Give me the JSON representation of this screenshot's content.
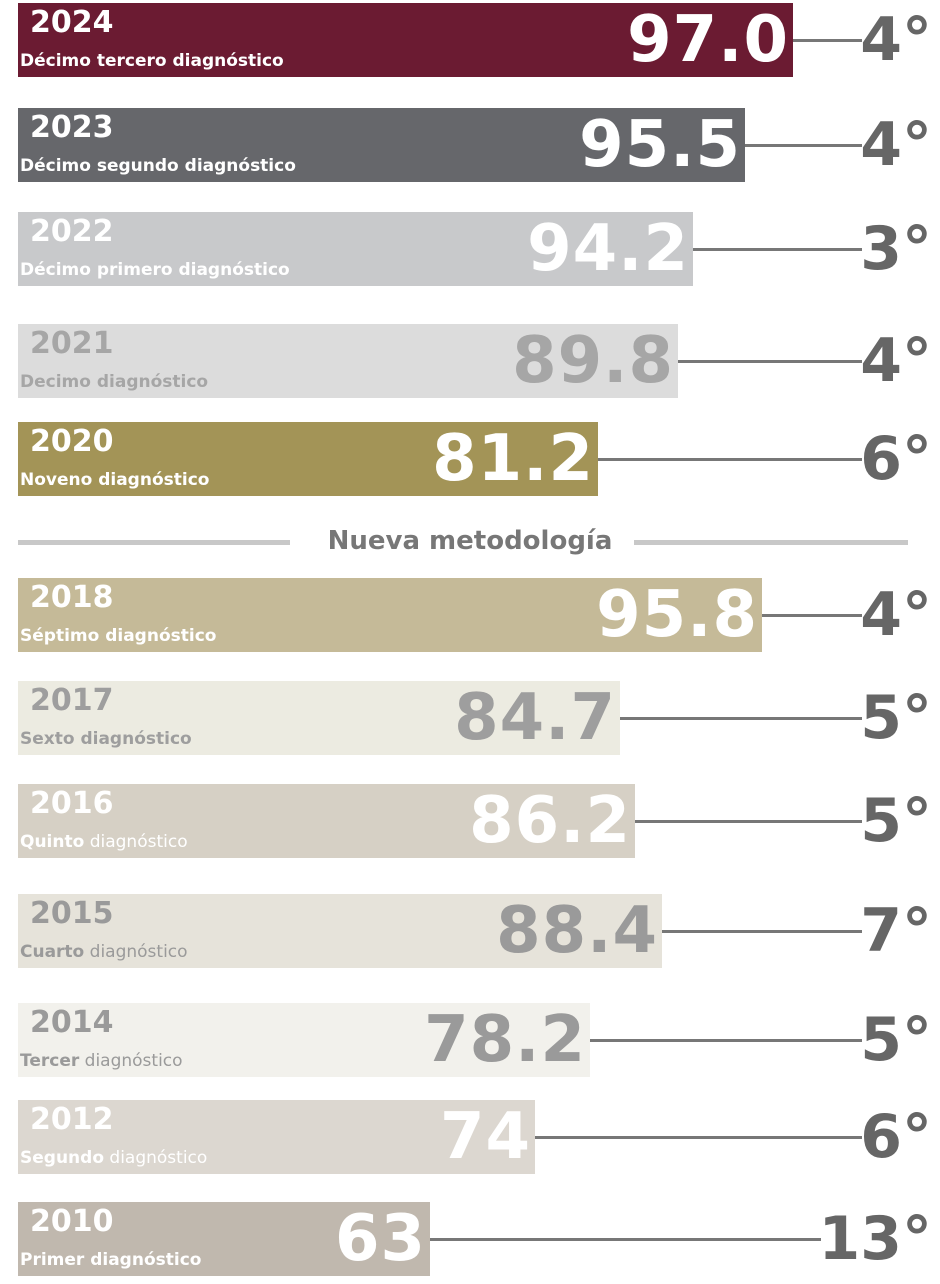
{
  "rows": [
    {
      "year": "2024",
      "label": "Décimo tercero diagnóstico",
      "score": "97.0",
      "rank": "4°"
    },
    {
      "year": "2023",
      "label": "Décimo segundo diagnóstico",
      "score": "95.5",
      "rank": "4°"
    },
    {
      "year": "2022",
      "label": "Décimo primero diagnóstico",
      "score": "94.2",
      "rank": "3°"
    },
    {
      "year": "2021",
      "label": "Decimo diagnóstico",
      "score": "89.8",
      "rank": "4°"
    },
    {
      "year": "2020",
      "label": "Noveno diagnóstico",
      "score": "81.2",
      "rank": "6°"
    },
    {
      "year": "2018",
      "label": "Séptimo diagnóstico",
      "score": "95.8",
      "rank": "4°"
    },
    {
      "year": "2017",
      "label": "Sexto diagnóstico",
      "score": "84.7",
      "rank": "5°"
    },
    {
      "year": "2016",
      "label": {
        "bold": "Quinto",
        "rest": "diagnóstico"
      },
      "score": "86.2",
      "rank": "5°"
    },
    {
      "year": "2015",
      "label": {
        "bold": "Cuarto",
        "rest": "diagnóstico"
      },
      "score": "88.4",
      "rank": "7°"
    },
    {
      "year": "2014",
      "label": {
        "bold": "Tercer",
        "rest": "diagnóstico"
      },
      "score": "78.2",
      "rank": "5°"
    },
    {
      "year": "2012",
      "label": {
        "bold": "Segundo",
        "rest": "diagnóstico"
      },
      "score": "74",
      "rank": "6°"
    },
    {
      "year": "2010",
      "label": "Primer diagnóstico",
      "score": "63",
      "rank": "13°"
    }
  ],
  "divider": "Nueva metodología"
}
